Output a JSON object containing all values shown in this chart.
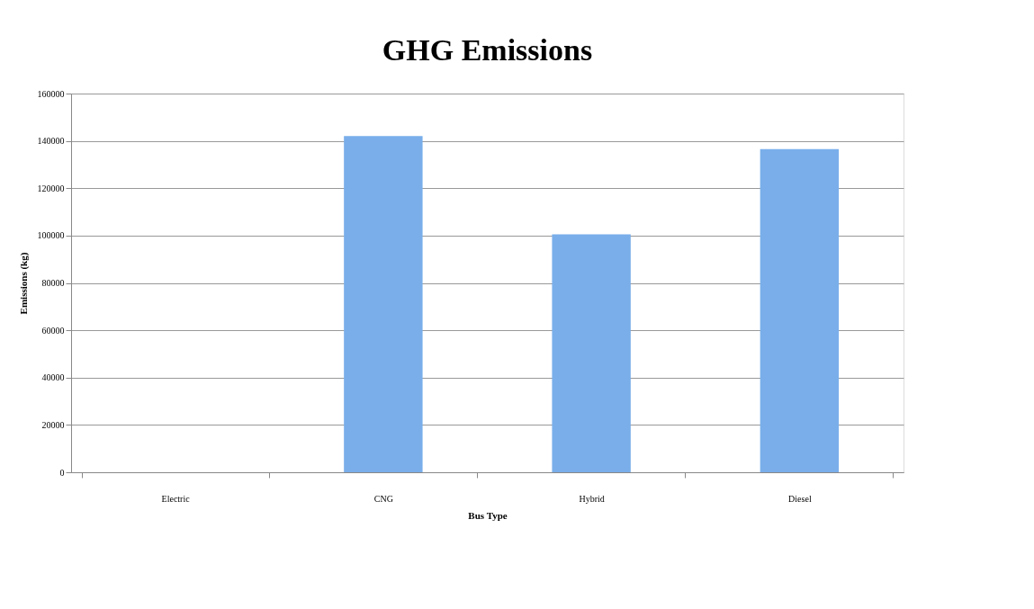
{
  "chart_data": {
    "type": "bar",
    "title": "GHG Emissions",
    "xlabel": "Bus Type",
    "ylabel": "Emissions (kg)",
    "categories": [
      "Electric",
      "CNG",
      "Hybrid",
      "Diesel"
    ],
    "values": [
      0,
      142000,
      100500,
      136500
    ],
    "color": "#79aeea",
    "ylim": [
      0,
      160000
    ],
    "yticks": [
      0,
      20000,
      40000,
      60000,
      80000,
      100000,
      120000,
      140000,
      160000
    ],
    "grid": "y"
  }
}
